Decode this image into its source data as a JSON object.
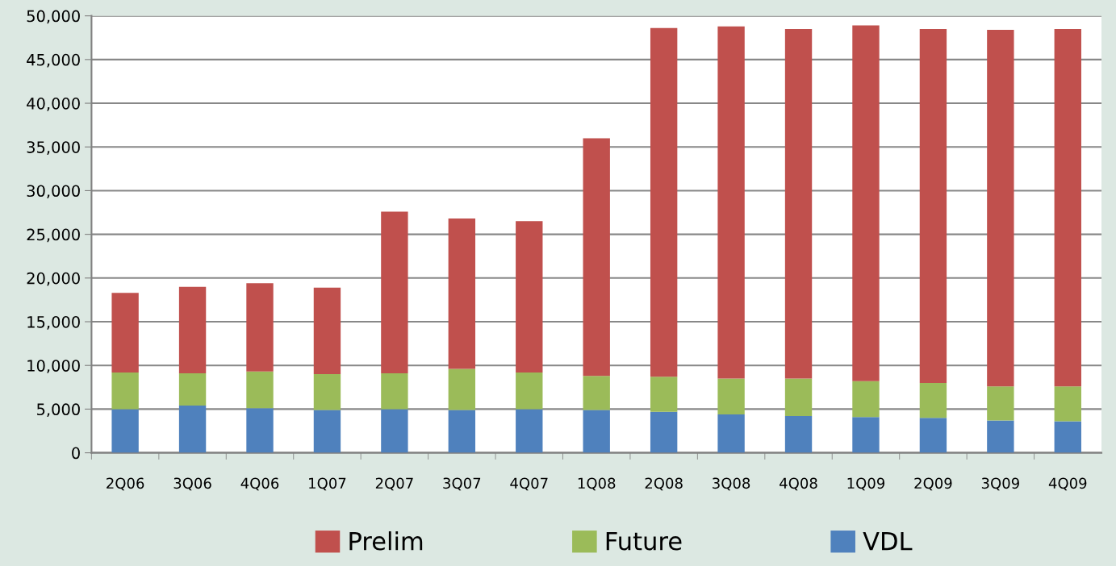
{
  "chart_data": {
    "type": "bar",
    "stacked": true,
    "categories": [
      "2Q06",
      "3Q06",
      "4Q06",
      "1Q07",
      "2Q07",
      "3Q07",
      "4Q07",
      "1Q08",
      "2Q08",
      "3Q08",
      "4Q08",
      "1Q09",
      "2Q09",
      "3Q09",
      "4Q09"
    ],
    "series": [
      {
        "name": "VDL",
        "color": "#4f81bd",
        "values": [
          5000,
          5400,
          5100,
          4900,
          5000,
          4900,
          5000,
          4900,
          4700,
          4400,
          4200,
          4100,
          4000,
          3700,
          3600
        ]
      },
      {
        "name": "Future",
        "color": "#9bbb59",
        "values": [
          4200,
          3700,
          4200,
          4100,
          4100,
          4700,
          4200,
          3900,
          4000,
          4100,
          4300,
          4100,
          4000,
          3900,
          4000
        ]
      },
      {
        "name": "Prelim",
        "color": "#c0504d",
        "values": [
          9100,
          9900,
          10100,
          9900,
          18500,
          17200,
          17300,
          27200,
          39900,
          40300,
          40000,
          40700,
          40500,
          40800,
          40900
        ]
      }
    ],
    "ylim": [
      0,
      50000
    ],
    "yticks": [
      {
        "value": 0,
        "label": "0"
      },
      {
        "value": 5000,
        "label": "5,000"
      },
      {
        "value": 10000,
        "label": "10,000"
      },
      {
        "value": 15000,
        "label": "15,000"
      },
      {
        "value": 20000,
        "label": "20,000"
      },
      {
        "value": 25000,
        "label": "25,000"
      },
      {
        "value": 30000,
        "label": "30,000"
      },
      {
        "value": 35000,
        "label": "35,000"
      },
      {
        "value": 40000,
        "label": "40,000"
      },
      {
        "value": 45000,
        "label": "45,000"
      },
      {
        "value": 50000,
        "label": "50,000"
      }
    ],
    "grid": "y",
    "legend": "bottom"
  }
}
